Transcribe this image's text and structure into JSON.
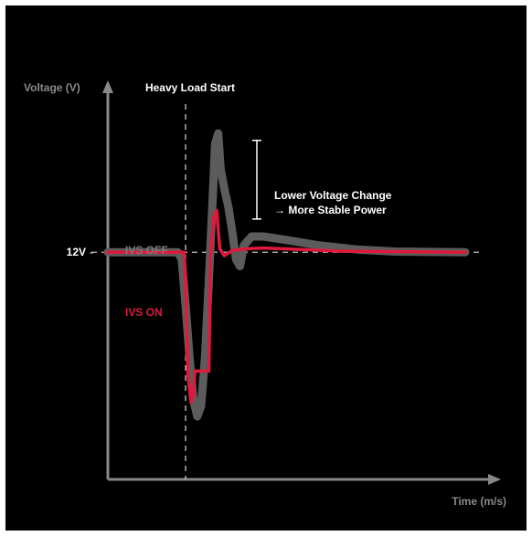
{
  "chart_data": {
    "type": "line",
    "title": "",
    "ylabel": "Voltage (V)",
    "xlabel": "Time (m/s)",
    "y_tick_label": "12V",
    "event_label": "Heavy Load Start",
    "annotation_line1": "Lower Voltage Change",
    "annotation_line2": "→ More Stable Power",
    "series": [
      {
        "name": "IVS OFF",
        "color": "#5c5c5c",
        "points": [
          [
            0.0,
            12.0
          ],
          [
            0.9,
            12.0
          ],
          [
            0.95,
            11.8
          ],
          [
            1.0,
            10.5
          ],
          [
            1.05,
            9.0
          ],
          [
            1.1,
            7.8
          ],
          [
            1.15,
            7.3
          ],
          [
            1.2,
            7.6
          ],
          [
            1.25,
            9.0
          ],
          [
            1.3,
            11.2
          ],
          [
            1.35,
            13.6
          ],
          [
            1.38,
            15.1
          ],
          [
            1.42,
            15.4
          ],
          [
            1.45,
            14.4
          ],
          [
            1.5,
            13.8
          ],
          [
            1.55,
            13.3
          ],
          [
            1.6,
            12.6
          ],
          [
            1.65,
            11.8
          ],
          [
            1.7,
            11.6
          ],
          [
            1.75,
            12.2
          ],
          [
            1.85,
            12.45
          ],
          [
            2.0,
            12.45
          ],
          [
            2.3,
            12.35
          ],
          [
            2.7,
            12.2
          ],
          [
            3.2,
            12.08
          ],
          [
            3.7,
            12.02
          ],
          [
            4.6,
            12.0
          ]
        ]
      },
      {
        "name": "IVS ON",
        "color": "#e0193c",
        "points": [
          [
            0.0,
            12.0
          ],
          [
            0.98,
            12.0
          ],
          [
            1.0,
            11.2
          ],
          [
            1.03,
            8.5
          ],
          [
            1.07,
            7.7
          ],
          [
            1.1,
            7.9
          ],
          [
            1.12,
            8.6
          ],
          [
            1.3,
            8.6
          ],
          [
            1.32,
            11.8
          ],
          [
            1.36,
            13.0
          ],
          [
            1.4,
            13.2
          ],
          [
            1.44,
            12.1
          ],
          [
            1.5,
            11.9
          ],
          [
            1.6,
            12.05
          ],
          [
            1.8,
            12.1
          ],
          [
            2.0,
            12.12
          ],
          [
            2.5,
            12.08
          ],
          [
            3.0,
            12.03
          ],
          [
            4.6,
            12.0
          ]
        ]
      }
    ],
    "event_x": 1.0,
    "y_reference": 12.0,
    "annotation_range": [
      12.95,
      15.2
    ],
    "xlim": [
      0,
      5.0
    ],
    "ylim": [
      5.5,
      16.5
    ],
    "grid": false,
    "background": "#000000",
    "axis_color": "#888888",
    "text_color": "#ffffff"
  }
}
